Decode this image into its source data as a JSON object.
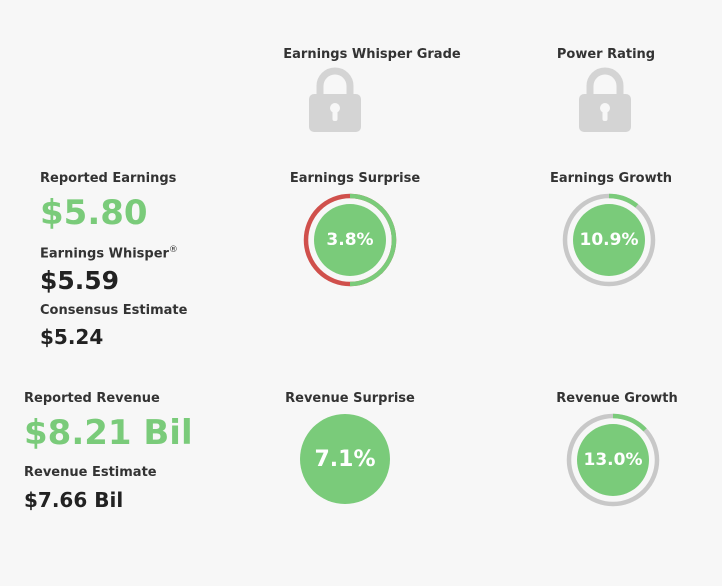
{
  "grades": {
    "whisper_grade_label": "Earnings Whisper Grade",
    "power_rating_label": "Power Rating"
  },
  "earnings": {
    "reported_label": "Reported Earnings",
    "reported_value": "$5.80",
    "whisper_label": "Earnings Whisper",
    "whisper_sup": "®",
    "whisper_value": "$5.59",
    "consensus_label": "Consensus Estimate",
    "consensus_value": "$5.24",
    "surprise_label": "Earnings Surprise",
    "surprise_value": "3.8%",
    "surprise_fraction": 0.5,
    "growth_label": "Earnings Growth",
    "growth_value": "10.9%",
    "growth_fraction": 0.109
  },
  "revenue": {
    "reported_label": "Reported Revenue",
    "reported_value": "$8.21 Bil",
    "estimate_label": "Revenue Estimate",
    "estimate_value": "$7.66 Bil",
    "surprise_label": "Revenue Surprise",
    "surprise_value": "7.1%",
    "growth_label": "Revenue Growth",
    "growth_value": "13.0%",
    "growth_fraction": 0.13
  },
  "colors": {
    "green": "#7acb7a",
    "red": "#d0504c",
    "gray_ring": "#c8c8c8",
    "lock": "#d4d4d4"
  },
  "icons": {
    "lock": "lock-icon"
  }
}
